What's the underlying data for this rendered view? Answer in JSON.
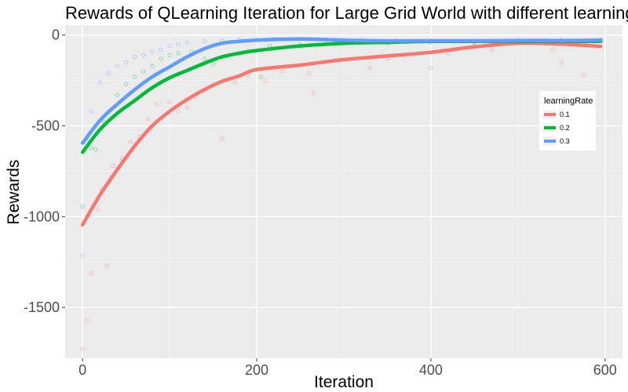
{
  "chart_data": {
    "type": "line",
    "title": "Rewards of QLearning Iteration for Large Grid World with different learningRate",
    "xlabel": "Iteration",
    "ylabel": "Rewards",
    "xlim": [
      -20,
      620
    ],
    "ylim": [
      -1780,
      55
    ],
    "x_ticks": [
      0,
      200,
      400,
      600
    ],
    "y_ticks": [
      0,
      -500,
      -1000,
      -1500
    ],
    "x_tick_labels": [
      "0",
      "200",
      "400",
      "600"
    ],
    "y_tick_labels": [
      "0",
      "-500",
      "-1000",
      "-1500"
    ],
    "grid": true,
    "legend": {
      "title": "learningRate",
      "position": "right"
    },
    "series": [
      {
        "name": "0.1",
        "color": "#f8766d",
        "x": [
          0,
          20,
          40,
          60,
          80,
          100,
          120,
          140,
          160,
          180,
          200,
          250,
          300,
          350,
          400,
          450,
          500,
          550,
          595
        ],
        "smooth": [
          -1045,
          -880,
          -740,
          -610,
          -500,
          -420,
          -355,
          -300,
          -255,
          -225,
          -190,
          -165,
          -135,
          -115,
          -95,
          -65,
          -45,
          -50,
          -62
        ],
        "points": [
          [
            0,
            -1730
          ],
          [
            5,
            -1570
          ],
          [
            10,
            -1310
          ],
          [
            18,
            -960
          ],
          [
            22,
            -850
          ],
          [
            28,
            -1270
          ],
          [
            35,
            -720
          ],
          [
            45,
            -680
          ],
          [
            55,
            -590
          ],
          [
            65,
            -560
          ],
          [
            75,
            -460
          ],
          [
            85,
            -380
          ],
          [
            100,
            -370
          ],
          [
            110,
            -420
          ],
          [
            120,
            -400
          ],
          [
            130,
            -340
          ],
          [
            140,
            -300
          ],
          [
            160,
            -570
          ],
          [
            175,
            -260
          ],
          [
            190,
            -220
          ],
          [
            210,
            -250
          ],
          [
            230,
            -200
          ],
          [
            260,
            -210
          ],
          [
            265,
            -320
          ],
          [
            290,
            -140
          ],
          [
            330,
            -180
          ],
          [
            350,
            -130
          ],
          [
            380,
            -110
          ],
          [
            400,
            -180
          ],
          [
            420,
            -100
          ],
          [
            450,
            -60
          ],
          [
            470,
            -80
          ],
          [
            510,
            -40
          ],
          [
            540,
            -80
          ],
          [
            550,
            -150
          ],
          [
            575,
            -220
          ],
          [
            590,
            -60
          ]
        ]
      },
      {
        "name": "0.2",
        "color": "#00ba38",
        "x": [
          0,
          20,
          40,
          60,
          80,
          100,
          120,
          140,
          160,
          180,
          200,
          250,
          300,
          350,
          400,
          450,
          500,
          550,
          595
        ],
        "smooth": [
          -645,
          -520,
          -430,
          -360,
          -290,
          -235,
          -195,
          -155,
          -120,
          -100,
          -85,
          -60,
          -45,
          -40,
          -35,
          -35,
          -35,
          -35,
          -35
        ],
        "points": [
          [
            0,
            -945
          ],
          [
            5,
            -570
          ],
          [
            10,
            -620
          ],
          [
            15,
            -630
          ],
          [
            25,
            -480
          ],
          [
            30,
            -420
          ],
          [
            40,
            -330
          ],
          [
            50,
            -270
          ],
          [
            60,
            -230
          ],
          [
            70,
            -200
          ],
          [
            80,
            -170
          ],
          [
            90,
            -130
          ],
          [
            100,
            -110
          ],
          [
            110,
            -100
          ],
          [
            125,
            -90
          ],
          [
            140,
            -130
          ],
          [
            150,
            -160
          ],
          [
            165,
            -120
          ],
          [
            180,
            -100
          ],
          [
            205,
            -230
          ],
          [
            215,
            -60
          ],
          [
            250,
            -55
          ],
          [
            280,
            -50
          ],
          [
            300,
            -45
          ],
          [
            350,
            -45
          ],
          [
            400,
            -40
          ],
          [
            450,
            -40
          ],
          [
            500,
            -35
          ],
          [
            550,
            -30
          ],
          [
            595,
            -30
          ]
        ]
      },
      {
        "name": "0.3",
        "color": "#619cff",
        "x": [
          0,
          20,
          40,
          60,
          80,
          100,
          120,
          140,
          160,
          180,
          200,
          250,
          300,
          350,
          400,
          450,
          500,
          550,
          595
        ],
        "smooth": [
          -595,
          -470,
          -380,
          -300,
          -230,
          -175,
          -120,
          -75,
          -45,
          -35,
          -28,
          -22,
          -28,
          -32,
          -32,
          -32,
          -30,
          -30,
          -28
        ],
        "points": [
          [
            0,
            -1215
          ],
          [
            10,
            -420
          ],
          [
            20,
            -260
          ],
          [
            30,
            -210
          ],
          [
            40,
            -170
          ],
          [
            50,
            -150
          ],
          [
            60,
            -120
          ],
          [
            70,
            -110
          ],
          [
            80,
            -90
          ],
          [
            90,
            -80
          ],
          [
            100,
            -60
          ],
          [
            110,
            -50
          ],
          [
            120,
            -40
          ],
          [
            140,
            -35
          ],
          [
            160,
            -30
          ],
          [
            180,
            -25
          ],
          [
            200,
            -25
          ],
          [
            220,
            -22
          ],
          [
            250,
            -22
          ],
          [
            280,
            -25
          ],
          [
            320,
            -28
          ],
          [
            360,
            -30
          ],
          [
            400,
            -30
          ],
          [
            450,
            -30
          ],
          [
            500,
            -28
          ],
          [
            550,
            -28
          ],
          [
            595,
            -25
          ]
        ]
      }
    ]
  }
}
